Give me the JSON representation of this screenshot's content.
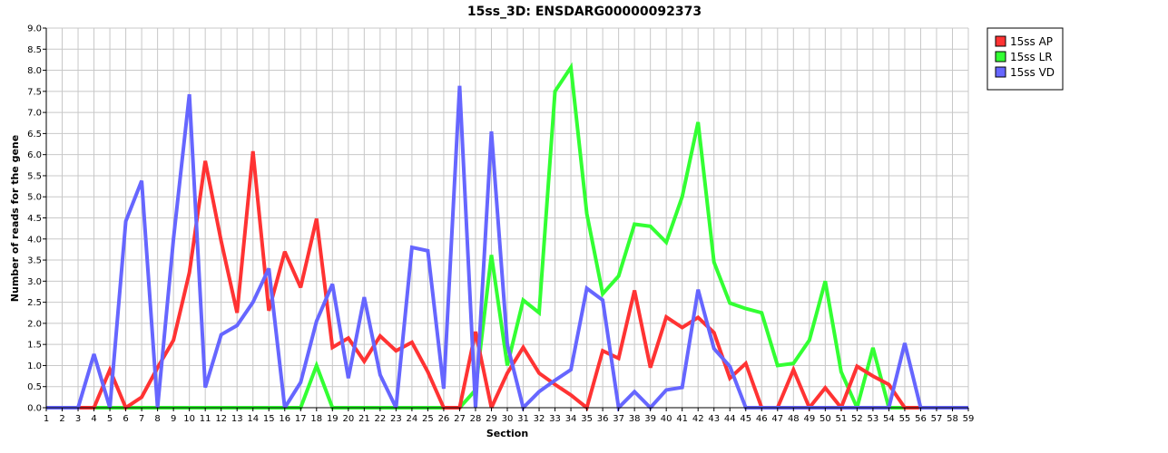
{
  "chart_data": {
    "type": "line",
    "title": "15ss_3D: ENSDARG00000092373",
    "xlabel": "Section",
    "ylabel": "Number of reads for the gene",
    "xlim": [
      1,
      59
    ],
    "ylim": [
      0,
      9
    ],
    "x_tick_step": 1,
    "y_tick_step": 0.5,
    "grid": true,
    "legend_position": "top-right",
    "x": [
      1,
      2,
      3,
      4,
      5,
      6,
      7,
      8,
      9,
      10,
      11,
      12,
      13,
      14,
      15,
      16,
      17,
      18,
      19,
      20,
      21,
      22,
      23,
      24,
      25,
      26,
      27,
      28,
      29,
      30,
      31,
      32,
      33,
      34,
      35,
      36,
      37,
      38,
      39,
      40,
      41,
      42,
      43,
      44,
      45,
      46,
      47,
      48,
      49,
      50,
      51,
      52,
      53,
      54,
      55,
      56,
      57,
      58,
      59
    ],
    "series": [
      {
        "name": "15ss AP",
        "color": "#ff3333",
        "values": [
          0,
          0,
          0,
          0,
          0.9,
          0,
          0.25,
          0.95,
          1.6,
          3.2,
          5.85,
          3.95,
          2.25,
          6.08,
          2.3,
          3.7,
          2.85,
          4.48,
          1.43,
          1.65,
          1.1,
          1.7,
          1.35,
          1.55,
          0.85,
          0,
          0,
          1.8,
          0,
          0.82,
          1.43,
          0.82,
          0.55,
          0.3,
          0,
          1.35,
          1.17,
          2.78,
          0.95,
          2.15,
          1.9,
          2.14,
          1.78,
          0.7,
          1.05,
          0,
          0,
          0.9,
          0,
          0.47,
          0,
          0.98,
          0.75,
          0.55,
          0,
          0,
          0,
          0,
          0
        ]
      },
      {
        "name": "15ss LR",
        "color": "#33ff33",
        "values": [
          0,
          0,
          0,
          0,
          0,
          0,
          0,
          0,
          0,
          0,
          0,
          0,
          0,
          0,
          0,
          0,
          0,
          1.0,
          0,
          0,
          0,
          0,
          0,
          0,
          0,
          0,
          0,
          0.42,
          3.62,
          1.0,
          2.55,
          2.25,
          7.5,
          8.07,
          4.6,
          2.7,
          3.12,
          4.35,
          4.3,
          3.92,
          5.0,
          6.77,
          3.45,
          2.48,
          2.35,
          2.25,
          1.0,
          1.05,
          1.6,
          3.0,
          0.85,
          0,
          1.42,
          0,
          0,
          0,
          0,
          0,
          0
        ]
      },
      {
        "name": "15ss VD",
        "color": "#6666ff",
        "values": [
          0,
          0,
          0,
          1.27,
          0,
          4.42,
          5.38,
          0,
          4.0,
          7.43,
          0.48,
          1.73,
          1.95,
          2.5,
          3.3,
          0,
          0.6,
          2.05,
          2.93,
          0.7,
          2.62,
          0.78,
          0,
          3.8,
          3.72,
          0.45,
          7.63,
          0,
          6.55,
          1.5,
          0,
          0.38,
          0.65,
          0.9,
          2.83,
          2.55,
          0,
          0.38,
          0,
          0.42,
          0.48,
          2.8,
          1.4,
          0.98,
          0,
          0,
          0,
          0,
          0,
          0,
          0,
          0,
          0,
          0,
          1.53,
          0,
          0,
          0,
          0
        ]
      }
    ]
  }
}
